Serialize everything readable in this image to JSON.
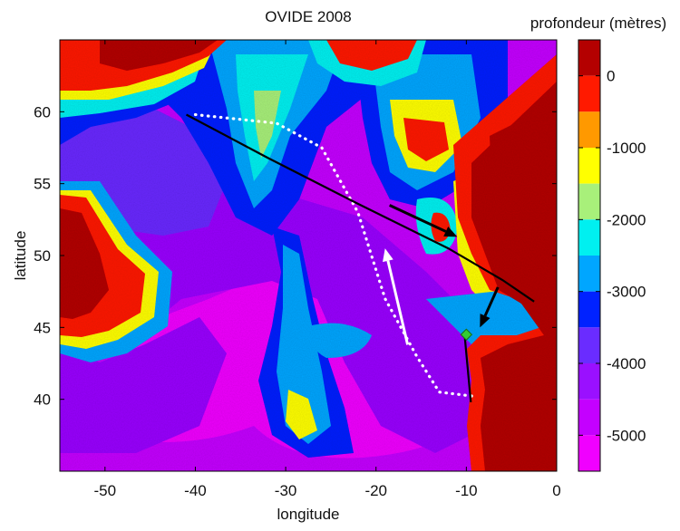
{
  "chart_data": {
    "type": "heatmap",
    "title": "OVIDE 2008",
    "xlabel": "longitude",
    "ylabel": "latitude",
    "xlim": [
      -55,
      0
    ],
    "ylim": [
      35,
      65
    ],
    "x_ticks": [
      {
        "value": -50,
        "label": "-50"
      },
      {
        "value": -40,
        "label": "-40"
      },
      {
        "value": -30,
        "label": "-30"
      },
      {
        "value": -20,
        "label": "-20"
      },
      {
        "value": -10,
        "label": "-10"
      },
      {
        "value": 0,
        "label": "0"
      }
    ],
    "y_ticks": [
      {
        "value": 40,
        "label": "40"
      },
      {
        "value": 45,
        "label": "45"
      },
      {
        "value": 50,
        "label": "50"
      },
      {
        "value": 55,
        "label": "55"
      },
      {
        "value": 60,
        "label": "60"
      }
    ],
    "colorbar": {
      "label": "profondeur (mètres)",
      "range": [
        -5500,
        500
      ],
      "ticks": [
        {
          "value": 0,
          "label": "0"
        },
        {
          "value": -1000,
          "label": "-1000"
        },
        {
          "value": -2000,
          "label": "-2000"
        },
        {
          "value": -3000,
          "label": "-3000"
        },
        {
          "value": -4000,
          "label": "-4000"
        },
        {
          "value": -5000,
          "label": "-5000"
        }
      ],
      "bands": [
        {
          "from": 0,
          "to": 500,
          "color": "#b40000"
        },
        {
          "from": -500,
          "to": 0,
          "color": "#ff1a00"
        },
        {
          "from": -1000,
          "to": -500,
          "color": "#ff9900"
        },
        {
          "from": -1500,
          "to": -1000,
          "color": "#ffff00"
        },
        {
          "from": -2000,
          "to": -1500,
          "color": "#a8f07a"
        },
        {
          "from": -2500,
          "to": -2000,
          "color": "#00f0f0"
        },
        {
          "from": -3000,
          "to": -2500,
          "color": "#00a6ff"
        },
        {
          "from": -3500,
          "to": -3000,
          "color": "#0022ff"
        },
        {
          "from": -4000,
          "to": -3500,
          "color": "#6a2cff"
        },
        {
          "from": -4500,
          "to": -4000,
          "color": "#9a10ff"
        },
        {
          "from": -5000,
          "to": -4500,
          "color": "#c400ff"
        },
        {
          "from": -5500,
          "to": -5000,
          "color": "#f000ff"
        }
      ]
    },
    "section_line": {
      "name": "OVIDE section",
      "points": [
        [
          -41,
          59.8
        ],
        [
          -32,
          56.8
        ],
        [
          -22,
          53.6
        ],
        [
          -12,
          50.5
        ],
        [
          -6,
          48.3
        ],
        [
          -2.5,
          46.8
        ]
      ],
      "color": "#000000"
    },
    "dotted_path": {
      "points": [
        [
          -40,
          59.8
        ],
        [
          -31,
          59.2
        ],
        [
          -26,
          57.5
        ],
        [
          -22,
          53
        ],
        [
          -19,
          47
        ],
        [
          -15.5,
          43
        ],
        [
          -13,
          40.5
        ],
        [
          -9,
          40.2
        ]
      ],
      "color": "#ffffff"
    },
    "arrows": [
      {
        "from": [
          -18.5,
          53.5
        ],
        "to": [
          -11,
          51.3
        ],
        "color": "#000000"
      },
      {
        "from": [
          -6.5,
          47.8
        ],
        "to": [
          -8.5,
          45
        ],
        "color": "#000000"
      },
      {
        "from": [
          -16.5,
          43.8
        ],
        "to": [
          -19,
          50.5
        ],
        "color": "#ffffff"
      }
    ],
    "short_segment": {
      "points": [
        [
          -9.5,
          39.8
        ],
        [
          -10.2,
          44.5
        ]
      ],
      "color": "#000000"
    },
    "marker": {
      "position": [
        -10,
        44.5
      ],
      "shape": "diamond",
      "color": "#33cc33"
    }
  }
}
